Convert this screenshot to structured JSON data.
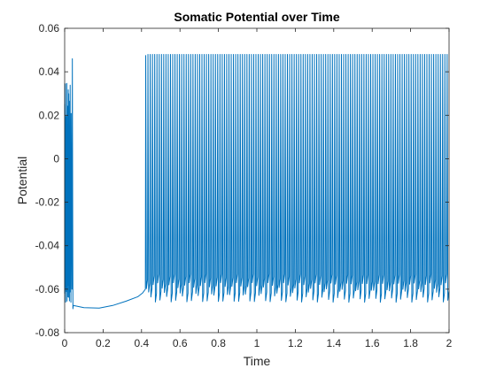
{
  "chart_data": {
    "type": "line",
    "title": "Somatic Potential over Time",
    "xlabel": "Time",
    "ylabel": "Potential",
    "xlim": [
      0,
      2
    ],
    "ylim": [
      -0.08,
      0.06
    ],
    "xticks": [
      0,
      0.2,
      0.4,
      0.6,
      0.8,
      1,
      1.2,
      1.4,
      1.6,
      1.8,
      2
    ],
    "xtick_labels": [
      "0",
      "0.2",
      "0.4",
      "0.6",
      "0.8",
      "1",
      "1.2",
      "1.4",
      "1.6",
      "1.8",
      "2"
    ],
    "yticks": [
      0.06,
      0.04,
      0.02,
      0,
      -0.02,
      -0.04,
      -0.06,
      -0.08
    ],
    "ytick_labels": [
      "0.06",
      "0.04",
      "0.02",
      "0",
      "-0.02",
      "-0.04",
      "-0.06",
      "-0.08"
    ],
    "grid": false,
    "legend": "none",
    "series_color": "#0072BD",
    "initial_burst": {
      "x_start": 0.0,
      "x_end": 0.035,
      "y_peak_min": 0.015,
      "y_peak_max": 0.035,
      "y_trough": -0.062
    },
    "initial_final_spike": {
      "x": 0.04,
      "y_peak": 0.046,
      "y_trough": -0.069
    },
    "quiescent_period": {
      "points": [
        [
          0.045,
          -0.0675
        ],
        [
          0.1,
          -0.0685
        ],
        [
          0.18,
          -0.0687
        ],
        [
          0.25,
          -0.0675
        ],
        [
          0.32,
          -0.0655
        ],
        [
          0.38,
          -0.0635
        ],
        [
          0.405,
          -0.0618
        ],
        [
          0.42,
          -0.06
        ]
      ]
    },
    "spike_train": {
      "x_start": 0.42,
      "x_end": 2.0,
      "spike_count": 135,
      "y_peak": 0.048,
      "y_trough_min": -0.066,
      "y_trough_max": -0.057
    }
  }
}
